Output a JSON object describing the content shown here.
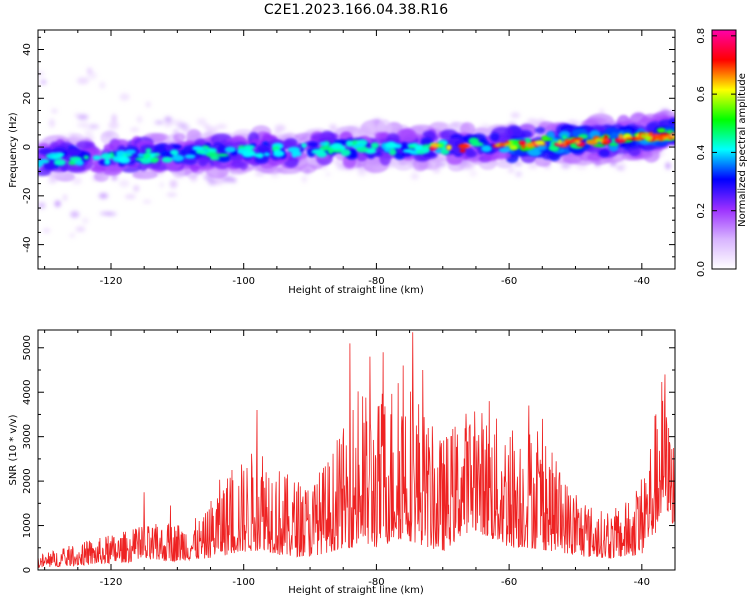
{
  "title": "C2E1.2023.166.04.38.R16",
  "chart_data": [
    {
      "type": "heatmap",
      "xlabel": "Height of straight line (km)",
      "ylabel": "Frequency (Hz)",
      "xlim": [
        -131,
        -35
      ],
      "ylim": [
        -50,
        48
      ],
      "xticks": [
        -120,
        -100,
        -80,
        -60,
        -40
      ],
      "yticks": [
        -40,
        -20,
        0,
        20,
        40
      ],
      "colorbar": {
        "label": "Normalized spectral amplitude",
        "range": [
          0.0,
          0.82
        ],
        "ticks": [
          0.0,
          0.2,
          0.4,
          0.6,
          0.8
        ],
        "colormap": [
          "#ffffff",
          "#d8b4ff",
          "#9b30ff",
          "#0000ff",
          "#00ffff",
          "#00ff00",
          "#ffff00",
          "#ff0000",
          "#ff00aa"
        ]
      },
      "ridge": {
        "x": [
          -131,
          -120,
          -110,
          -100,
          -90,
          -80,
          -70,
          -60,
          -50,
          -40,
          -35
        ],
        "frequency_center": [
          -5,
          -4,
          -3,
          -2,
          -1,
          0,
          0,
          1,
          2,
          4,
          5
        ]
      },
      "colors": {
        "grid": "#000000"
      }
    },
    {
      "type": "line",
      "xlabel": "Height of straight line (km)",
      "ylabel": "SNR (10 * v/v)",
      "xlim": [
        -131,
        -35
      ],
      "ylim": [
        0,
        5400
      ],
      "xticks": [
        -120,
        -100,
        -80,
        -60,
        -40
      ],
      "yticks": [
        0,
        1000,
        2000,
        3000,
        4000,
        5000
      ],
      "series": [
        {
          "color": "#ee2222",
          "envelope": {
            "x": [
              -131,
              -125,
              -120,
              -115,
              -110,
              -106,
              -104,
              -100,
              -97,
              -94,
              -90,
              -87,
              -85,
              -83,
              -80,
              -78,
              -76,
              -74,
              -72,
              -70,
              -67,
              -65,
              -63,
              -60,
              -57,
              -55,
              -52,
              -50,
              -47,
              -45,
              -42,
              -40,
              -38,
              -37,
              -36,
              -35
            ],
            "low": [
              50,
              100,
              150,
              200,
              200,
              250,
              300,
              400,
              450,
              300,
              300,
              400,
              500,
              500,
              500,
              600,
              700,
              600,
              500,
              400,
              800,
              900,
              700,
              500,
              500,
              450,
              400,
              300,
              300,
              250,
              300,
              350,
              800,
              1200,
              1300,
              900
            ],
            "high": [
              350,
              600,
              800,
              1000,
              1100,
              1200,
              2000,
              2500,
              3000,
              2200,
              2000,
              2600,
              3200,
              4200,
              3800,
              4300,
              4600,
              4200,
              3300,
              3000,
              3600,
              3800,
              3500,
              3400,
              3300,
              3100,
              2200,
              1800,
              1400,
              1300,
              1600,
              2200,
              3600,
              4400,
              3400,
              3100
            ]
          },
          "peaks": [
            {
              "x": -115,
              "y": 1750
            },
            {
              "x": -111,
              "y": 1450
            },
            {
              "x": -98,
              "y": 3600
            },
            {
              "x": -84,
              "y": 5100
            },
            {
              "x": -81,
              "y": 4800
            },
            {
              "x": -79,
              "y": 4900
            },
            {
              "x": -76,
              "y": 4600
            },
            {
              "x": -74.5,
              "y": 5350
            },
            {
              "x": -73,
              "y": 4500
            },
            {
              "x": -63,
              "y": 3800
            },
            {
              "x": -57,
              "y": 3700
            },
            {
              "x": -55,
              "y": 3400
            },
            {
              "x": -36.5,
              "y": 4400
            }
          ]
        }
      ],
      "colors": {
        "frame": "#000000"
      }
    }
  ]
}
